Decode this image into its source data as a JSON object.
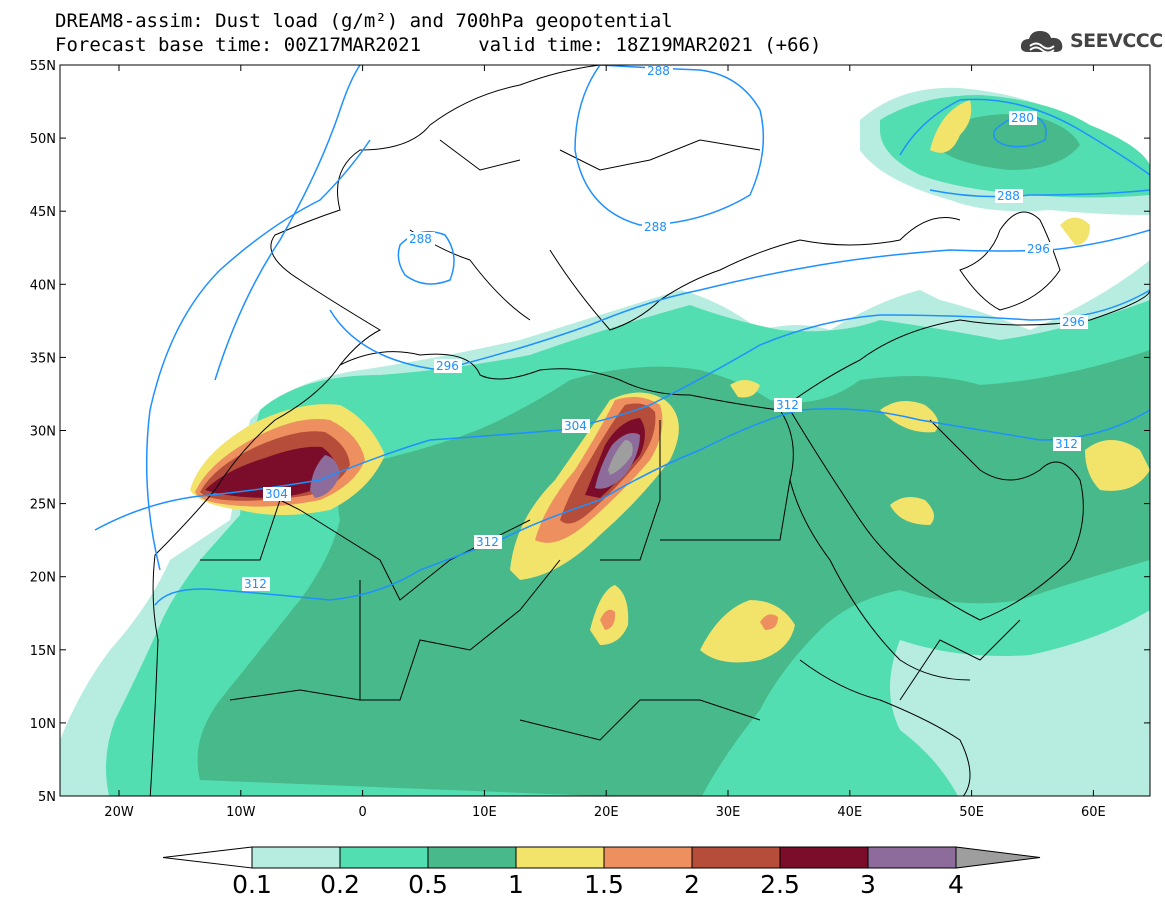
{
  "header": {
    "line1": "DREAM8-assim: Dust load (g/m²) and 700hPa geopotential",
    "line2": "Forecast base time: 00Z17MAR2021     valid time: 18Z19MAR2021 (+66)"
  },
  "logo": {
    "text": "SEEVCCC",
    "icon": "cloud-icon"
  },
  "axes": {
    "lat_labels": [
      "55N",
      "50N",
      "45N",
      "40N",
      "35N",
      "30N",
      "25N",
      "20N",
      "15N",
      "10N",
      "5N"
    ],
    "lon_labels": [
      "20W",
      "10W",
      "0",
      "10E",
      "20E",
      "30E",
      "40E",
      "50E",
      "60E"
    ]
  },
  "contour_labels": [
    "288",
    "288",
    "288",
    "280",
    "288",
    "296",
    "304",
    "296",
    "304",
    "312",
    "312",
    "312",
    "312"
  ],
  "colorbar": {
    "ticks": [
      "0.1",
      "0.2",
      "0.5",
      "1",
      "1.5",
      "2",
      "2.5",
      "3",
      "4"
    ],
    "colors": [
      "#ffffff",
      "#b6ede0",
      "#52deb0",
      "#48b98b",
      "#f2e36b",
      "#ed8f5e",
      "#b54d3a",
      "#7c0d2a",
      "#8d6b9a",
      "#9e9e9e"
    ]
  },
  "colors": {
    "contour": "#1e90ff",
    "coast": "#000000",
    "frame": "#000000"
  }
}
